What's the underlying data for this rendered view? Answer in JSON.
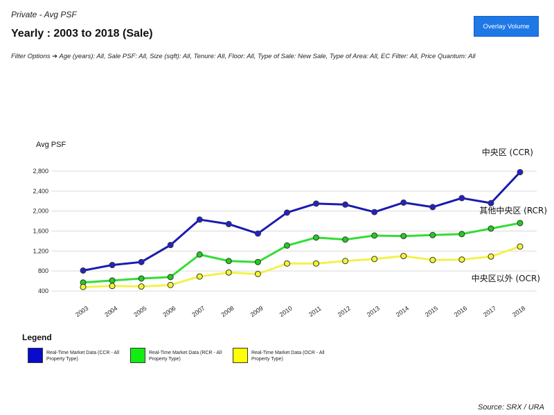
{
  "header": {
    "breadcrumb": "Private - Avg PSF",
    "title": "Yearly : 2003 to 2018 (Sale)",
    "filters": "Filter Options ➔ Age (years): All, Sale PSF: All, Size (sqft): All, Tenure: All, Floor: All, Type of Sale: New Sale, Type of Area: All, EC Filter: All, Price Quantum: All",
    "overlay_button": "Overlay Volume"
  },
  "chart_data": {
    "type": "line",
    "ylabel": "Avg PSF",
    "xlabel": "",
    "categories": [
      "2003",
      "2004",
      "2005",
      "2006",
      "2007",
      "2008",
      "2009",
      "2010",
      "2011",
      "2012",
      "2013",
      "2014",
      "2015",
      "2016",
      "2017",
      "2018"
    ],
    "ylim": [
      400,
      2800
    ],
    "yticks": [
      400,
      800,
      1200,
      1600,
      2000,
      2400,
      2800
    ],
    "ytick_labels": [
      "400",
      "800",
      "1,200",
      "1,600",
      "2,000",
      "2,400",
      "2,800"
    ],
    "grid": true,
    "series": [
      {
        "name": "Real-Time Market Data (CCR - All Property Type)",
        "annotation": "中央区 (CCR)",
        "color": "#1a1ab0",
        "marker_color": "#2222cc",
        "values": [
          810,
          920,
          980,
          1320,
          1830,
          1740,
          1550,
          1970,
          2150,
          2130,
          1980,
          2170,
          2080,
          2260,
          2160,
          2780
        ]
      },
      {
        "name": "Real-Time Market Data (RCR - All Property Type)",
        "annotation": "其他中央区 (RCR)",
        "color": "#33dd33",
        "marker_color": "#22cc22",
        "values": [
          570,
          610,
          650,
          680,
          1130,
          1000,
          980,
          1310,
          1470,
          1430,
          1510,
          1500,
          1520,
          1540,
          1650,
          1760
        ]
      },
      {
        "name": "Real-Time Market Data (OCR - All Property Type)",
        "annotation": "中央区以外 (OCR)",
        "color": "#f2f24a",
        "marker_color": "#f5f530",
        "values": [
          480,
          500,
          490,
          520,
          690,
          770,
          740,
          950,
          950,
          1000,
          1040,
          1100,
          1020,
          1030,
          1090,
          1290
        ]
      }
    ]
  },
  "legend": {
    "title": "Legend",
    "items": [
      {
        "label": "Real-Time Market Data (CCR - All Property Type)",
        "color": "#0a0acc"
      },
      {
        "label": "Real-Time Market Data (RCR - All Property Type)",
        "color": "#11ee11"
      },
      {
        "label": "Real-Time Market Data (OCR - All Property Type)",
        "color": "#ffff00"
      }
    ]
  },
  "footer": {
    "source": "Source: SRX / URA"
  }
}
